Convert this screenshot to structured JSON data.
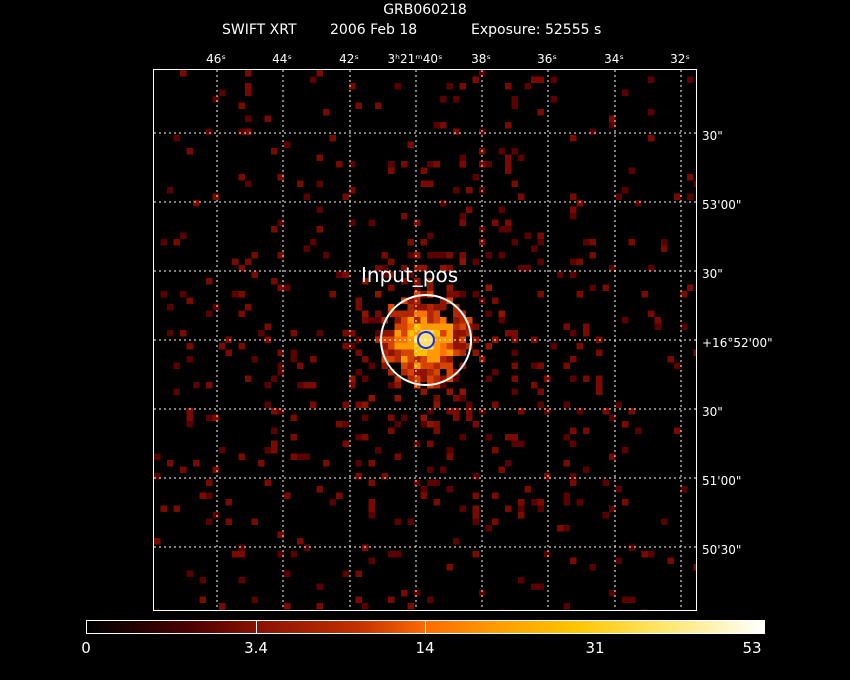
{
  "header": {
    "object": "GRB060218",
    "instrument": "SWIFT XRT",
    "date": "2006 Feb 18",
    "exposure": "Exposure: 52555 s"
  },
  "axes": {
    "ra_ticks": [
      "46ˢ",
      "44ˢ",
      "42ˢ",
      "3ʰ21ᵐ40ˢ",
      "38ˢ",
      "36ˢ",
      "34ˢ",
      "32ˢ"
    ],
    "dec_ticks": [
      "30\"",
      "53'00\"",
      "30\"",
      "+16°52'00\"",
      "30\"",
      "51'00\"",
      "50'30\""
    ]
  },
  "marker": {
    "label": "Input_pos"
  },
  "colorbar": {
    "labels": [
      "0",
      "3.4",
      "14",
      "31",
      "53"
    ]
  },
  "colors": {
    "source_core": "#ffb000",
    "marker_inner": "#1030ff",
    "marker_outer": "#ffffff",
    "grid": "#ffffff"
  }
}
